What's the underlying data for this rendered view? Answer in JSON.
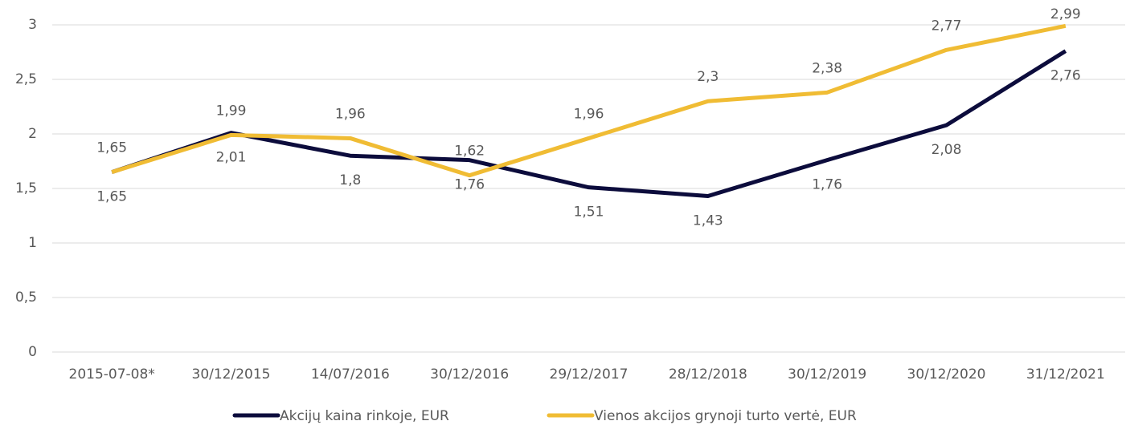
{
  "chart_data": {
    "type": "line",
    "categories": [
      "2015-07-08*",
      "30/12/2015",
      "14/07/2016",
      "30/12/2016",
      "29/12/2017",
      "28/12/2018",
      "30/12/2019",
      "30/12/2020",
      "31/12/2021"
    ],
    "series": [
      {
        "name": "Akcijų kaina rinkoje, EUR",
        "color": "#0c0c3c",
        "values": [
          1.65,
          2.01,
          1.8,
          1.76,
          1.51,
          1.43,
          1.76,
          2.08,
          2.76
        ],
        "value_labels": [
          "1,65",
          "2,01",
          "1,8",
          "1,76",
          "1,51",
          "1,43",
          "1,76",
          "2,08",
          "2,76"
        ]
      },
      {
        "name": "Vienos akcijos grynoji turto vertė, EUR",
        "color": "#f0bc34",
        "values": [
          1.65,
          1.99,
          1.96,
          1.62,
          1.96,
          2.3,
          2.38,
          2.77,
          2.99
        ],
        "value_labels": [
          "1,65",
          "1,99",
          "1,96",
          "1,62",
          "1,96",
          "2,3",
          "2,38",
          "2,77",
          "2,99"
        ]
      }
    ],
    "ylim": [
      0,
      3
    ],
    "yticks": [
      0,
      {
        "value": 0.5,
        "label": "0,5"
      },
      1,
      {
        "value": 1.5,
        "label": "1,5"
      },
      2,
      {
        "value": 2.5,
        "label": "2,5"
      },
      3
    ],
    "grid": true,
    "legend": "bottom"
  }
}
